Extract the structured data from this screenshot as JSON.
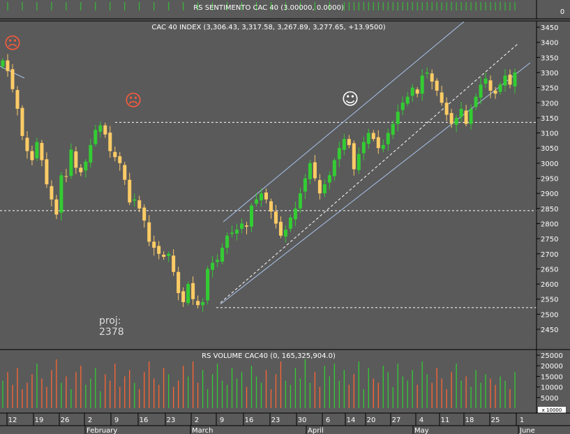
{
  "colors": {
    "background": "#5a5a5a",
    "up": "#33cc33",
    "down": "#ffcc66",
    "volume_up": "#33cc33",
    "volume_down": "#ff6633",
    "channel": "#a9c4ec",
    "smiley_bad": "#ff5a3c",
    "smiley_good": "#ffffff"
  },
  "top_panel": {
    "title": "RS SENTIMENTO CAC 40 (3.00000, 0.0000)",
    "axis_label": "0"
  },
  "main_panel": {
    "title": "CAC 40 INDEX (3,306.43, 3,317.58, 3,267.89, 3,277.65, +13.9500)"
  },
  "volume_panel": {
    "title": "RS VOLUME CAC40 (0, 165,325,904.0)",
    "y_ticks": [
      "25000",
      "20000",
      "15000",
      "10000",
      "5000"
    ],
    "unit_label": "x 10000"
  },
  "projection": {
    "label": "proj:",
    "value": "2378"
  },
  "annotations": {
    "sad_face": "☹",
    "happy_face": "☺"
  },
  "chart_data": {
    "type": "candlestick",
    "title": "CAC 40 INDEX (3,306.43, 3,317.58, 3,267.89, 3,277.65, +13.9500)",
    "y_range": [
      2380,
      3480
    ],
    "y_ticks": [
      2450,
      2500,
      2550,
      2600,
      2650,
      2700,
      2750,
      2800,
      2850,
      2900,
      2950,
      3000,
      3050,
      3100,
      3150,
      3200,
      3250,
      3300,
      3350,
      3400,
      3450
    ],
    "x_tick_labels": [
      "12",
      "19",
      "26",
      "2",
      "9",
      "16",
      "23",
      "2",
      "9",
      "16",
      "23",
      "30",
      "6",
      "14",
      "20",
      "27",
      "4",
      "11",
      "18",
      "25",
      "1"
    ],
    "month_labels": [
      "February",
      "March",
      "April",
      "May",
      "June"
    ],
    "horizontal_levels": [
      3135,
      2843,
      2522
    ],
    "closes": [
      3340,
      3305,
      3245,
      3180,
      3090,
      3040,
      3010,
      3070,
      3010,
      2930,
      2880,
      2830,
      2960,
      2955,
      3045,
      2985,
      2970,
      3005,
      3060,
      3110,
      3125,
      3095,
      3040,
      3020,
      3000,
      2945,
      2870,
      2880,
      2850,
      2810,
      2740,
      2720,
      2700,
      2690,
      2700,
      2640,
      2570,
      2540,
      2600,
      2550,
      2530,
      2540,
      2650,
      2670,
      2680,
      2720,
      2760,
      2770,
      2780,
      2800,
      2790,
      2860,
      2880,
      2900,
      2880,
      2840,
      2800,
      2760,
      2780,
      2820,
      2850,
      2900,
      2950,
      3000,
      2950,
      2900,
      2930,
      2960,
      3010,
      3050,
      3080,
      3060,
      2980,
      3030,
      3070,
      3100,
      3080,
      3050,
      3060,
      3100,
      3130,
      3170,
      3200,
      3220,
      3250,
      3230,
      3290,
      3300,
      3270,
      3240,
      3200,
      3160,
      3130,
      3150,
      3180,
      3130,
      3180,
      3220,
      3260,
      3280,
      3240,
      3230,
      3260,
      3290,
      3260,
      3300
    ],
    "volumes": [
      13000,
      17000,
      11000,
      19000,
      9000,
      12000,
      16000,
      21000,
      14000,
      10000,
      18000,
      23000,
      12000,
      15000,
      9000,
      17000,
      20000,
      11000,
      14000,
      19000,
      8000,
      16000,
      13000,
      21000,
      10000,
      15000,
      18000,
      12000,
      9000,
      17000,
      22000,
      14000,
      11000,
      19000,
      16000,
      10000,
      13000,
      20000,
      15000,
      22000,
      12000,
      18000,
      9000,
      16000,
      21000,
      13000,
      11000,
      19000,
      14000,
      17000,
      10000,
      20000,
      15000,
      12000,
      18000,
      9000,
      16000,
      22000,
      13000,
      11000,
      19000,
      14000,
      23000,
      12000,
      17000,
      10000,
      20000,
      15000,
      21000,
      13000,
      18000,
      11000,
      16000,
      22000,
      9000,
      19000,
      14000,
      12000,
      20000,
      17000,
      10000,
      21000,
      15000,
      13000,
      18000,
      11000,
      22000,
      16000,
      12000,
      19000,
      14000,
      9000,
      17000,
      21000,
      13000,
      15000,
      10000,
      18000,
      12000,
      16000,
      14000,
      11000,
      15000,
      13000,
      9000,
      17000
    ],
    "sentiment_bars": "green"
  }
}
